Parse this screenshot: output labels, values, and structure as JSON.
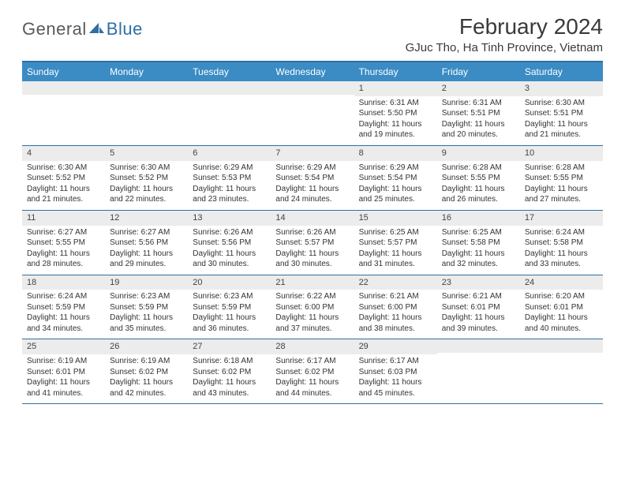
{
  "brand": {
    "part1": "General",
    "part2": "Blue"
  },
  "title": "February 2024",
  "subtitle": "GJuc Tho, Ha Tinh Province, Vietnam",
  "colors": {
    "header_bg": "#3b8bc4",
    "header_text": "#ffffff",
    "border": "#2f6fa3",
    "date_bg": "#ececec",
    "text": "#333333",
    "logo_gray": "#6b6b6b",
    "logo_blue": "#2f6fa3"
  },
  "day_names": [
    "Sunday",
    "Monday",
    "Tuesday",
    "Wednesday",
    "Thursday",
    "Friday",
    "Saturday"
  ],
  "weeks": [
    [
      {
        "date": "",
        "sunrise": "",
        "sunset": "",
        "daylight": ""
      },
      {
        "date": "",
        "sunrise": "",
        "sunset": "",
        "daylight": ""
      },
      {
        "date": "",
        "sunrise": "",
        "sunset": "",
        "daylight": ""
      },
      {
        "date": "",
        "sunrise": "",
        "sunset": "",
        "daylight": ""
      },
      {
        "date": "1",
        "sunrise": "Sunrise: 6:31 AM",
        "sunset": "Sunset: 5:50 PM",
        "daylight": "Daylight: 11 hours and 19 minutes."
      },
      {
        "date": "2",
        "sunrise": "Sunrise: 6:31 AM",
        "sunset": "Sunset: 5:51 PM",
        "daylight": "Daylight: 11 hours and 20 minutes."
      },
      {
        "date": "3",
        "sunrise": "Sunrise: 6:30 AM",
        "sunset": "Sunset: 5:51 PM",
        "daylight": "Daylight: 11 hours and 21 minutes."
      }
    ],
    [
      {
        "date": "4",
        "sunrise": "Sunrise: 6:30 AM",
        "sunset": "Sunset: 5:52 PM",
        "daylight": "Daylight: 11 hours and 21 minutes."
      },
      {
        "date": "5",
        "sunrise": "Sunrise: 6:30 AM",
        "sunset": "Sunset: 5:52 PM",
        "daylight": "Daylight: 11 hours and 22 minutes."
      },
      {
        "date": "6",
        "sunrise": "Sunrise: 6:29 AM",
        "sunset": "Sunset: 5:53 PM",
        "daylight": "Daylight: 11 hours and 23 minutes."
      },
      {
        "date": "7",
        "sunrise": "Sunrise: 6:29 AM",
        "sunset": "Sunset: 5:54 PM",
        "daylight": "Daylight: 11 hours and 24 minutes."
      },
      {
        "date": "8",
        "sunrise": "Sunrise: 6:29 AM",
        "sunset": "Sunset: 5:54 PM",
        "daylight": "Daylight: 11 hours and 25 minutes."
      },
      {
        "date": "9",
        "sunrise": "Sunrise: 6:28 AM",
        "sunset": "Sunset: 5:55 PM",
        "daylight": "Daylight: 11 hours and 26 minutes."
      },
      {
        "date": "10",
        "sunrise": "Sunrise: 6:28 AM",
        "sunset": "Sunset: 5:55 PM",
        "daylight": "Daylight: 11 hours and 27 minutes."
      }
    ],
    [
      {
        "date": "11",
        "sunrise": "Sunrise: 6:27 AM",
        "sunset": "Sunset: 5:55 PM",
        "daylight": "Daylight: 11 hours and 28 minutes."
      },
      {
        "date": "12",
        "sunrise": "Sunrise: 6:27 AM",
        "sunset": "Sunset: 5:56 PM",
        "daylight": "Daylight: 11 hours and 29 minutes."
      },
      {
        "date": "13",
        "sunrise": "Sunrise: 6:26 AM",
        "sunset": "Sunset: 5:56 PM",
        "daylight": "Daylight: 11 hours and 30 minutes."
      },
      {
        "date": "14",
        "sunrise": "Sunrise: 6:26 AM",
        "sunset": "Sunset: 5:57 PM",
        "daylight": "Daylight: 11 hours and 30 minutes."
      },
      {
        "date": "15",
        "sunrise": "Sunrise: 6:25 AM",
        "sunset": "Sunset: 5:57 PM",
        "daylight": "Daylight: 11 hours and 31 minutes."
      },
      {
        "date": "16",
        "sunrise": "Sunrise: 6:25 AM",
        "sunset": "Sunset: 5:58 PM",
        "daylight": "Daylight: 11 hours and 32 minutes."
      },
      {
        "date": "17",
        "sunrise": "Sunrise: 6:24 AM",
        "sunset": "Sunset: 5:58 PM",
        "daylight": "Daylight: 11 hours and 33 minutes."
      }
    ],
    [
      {
        "date": "18",
        "sunrise": "Sunrise: 6:24 AM",
        "sunset": "Sunset: 5:59 PM",
        "daylight": "Daylight: 11 hours and 34 minutes."
      },
      {
        "date": "19",
        "sunrise": "Sunrise: 6:23 AM",
        "sunset": "Sunset: 5:59 PM",
        "daylight": "Daylight: 11 hours and 35 minutes."
      },
      {
        "date": "20",
        "sunrise": "Sunrise: 6:23 AM",
        "sunset": "Sunset: 5:59 PM",
        "daylight": "Daylight: 11 hours and 36 minutes."
      },
      {
        "date": "21",
        "sunrise": "Sunrise: 6:22 AM",
        "sunset": "Sunset: 6:00 PM",
        "daylight": "Daylight: 11 hours and 37 minutes."
      },
      {
        "date": "22",
        "sunrise": "Sunrise: 6:21 AM",
        "sunset": "Sunset: 6:00 PM",
        "daylight": "Daylight: 11 hours and 38 minutes."
      },
      {
        "date": "23",
        "sunrise": "Sunrise: 6:21 AM",
        "sunset": "Sunset: 6:01 PM",
        "daylight": "Daylight: 11 hours and 39 minutes."
      },
      {
        "date": "24",
        "sunrise": "Sunrise: 6:20 AM",
        "sunset": "Sunset: 6:01 PM",
        "daylight": "Daylight: 11 hours and 40 minutes."
      }
    ],
    [
      {
        "date": "25",
        "sunrise": "Sunrise: 6:19 AM",
        "sunset": "Sunset: 6:01 PM",
        "daylight": "Daylight: 11 hours and 41 minutes."
      },
      {
        "date": "26",
        "sunrise": "Sunrise: 6:19 AM",
        "sunset": "Sunset: 6:02 PM",
        "daylight": "Daylight: 11 hours and 42 minutes."
      },
      {
        "date": "27",
        "sunrise": "Sunrise: 6:18 AM",
        "sunset": "Sunset: 6:02 PM",
        "daylight": "Daylight: 11 hours and 43 minutes."
      },
      {
        "date": "28",
        "sunrise": "Sunrise: 6:17 AM",
        "sunset": "Sunset: 6:02 PM",
        "daylight": "Daylight: 11 hours and 44 minutes."
      },
      {
        "date": "29",
        "sunrise": "Sunrise: 6:17 AM",
        "sunset": "Sunset: 6:03 PM",
        "daylight": "Daylight: 11 hours and 45 minutes."
      },
      {
        "date": "",
        "sunrise": "",
        "sunset": "",
        "daylight": ""
      },
      {
        "date": "",
        "sunrise": "",
        "sunset": "",
        "daylight": ""
      }
    ]
  ]
}
